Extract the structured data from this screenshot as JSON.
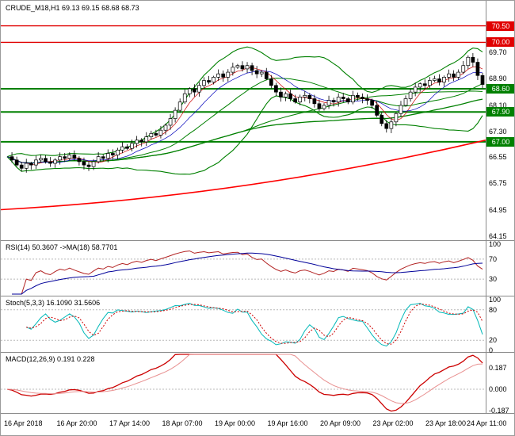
{
  "header": {
    "symbol_ohlc_label": "CRUDE_M18,H1 69.13 69.15 68.68 68.73"
  },
  "main_chart": {
    "y_ticks": [
      "69.70",
      "68.90",
      "68.10",
      "67.30",
      "66.55",
      "65.75",
      "64.95",
      "64.15"
    ],
    "levels": [
      {
        "label": "70.50",
        "value": 70.5,
        "color": "#e00000",
        "role": "resistance"
      },
      {
        "label": "70.00",
        "value": 70.0,
        "color": "#e00000",
        "role": "resistance"
      },
      {
        "label": "68.60",
        "value": 68.6,
        "color": "#008000",
        "role": "support"
      },
      {
        "label": "67.90",
        "value": 67.9,
        "color": "#008000",
        "role": "support"
      },
      {
        "label": "67.00",
        "value": 67.0,
        "color": "#008000",
        "role": "support"
      }
    ]
  },
  "indicators": {
    "rsi": {
      "label": "RSI(14) 50.3607  ->MA(18) 58.7701",
      "y_ticks": [
        100,
        70,
        30
      ],
      "levels": [
        70,
        30
      ],
      "range": [
        0,
        100
      ]
    },
    "stoch": {
      "label": "Stoch(5,3,3) 16.1090 31.5606",
      "y_ticks": [
        100,
        80,
        20,
        0
      ],
      "levels": [
        80,
        20
      ],
      "range": [
        0,
        100
      ]
    },
    "macd": {
      "label": "MACD(12,26,9) 0.191 0.228",
      "y_ticks": [
        "0.187",
        "0.000",
        "-0.187"
      ],
      "levels": [
        0
      ]
    }
  },
  "time_axis": {
    "labels": [
      "16 Apr 2018",
      "16 Apr 20:00",
      "17 Apr 14:00",
      "18 Apr 07:00",
      "19 Apr 00:00",
      "19 Apr 16:00",
      "20 Apr 09:00",
      "23 Apr 02:00",
      "23 Apr 18:00",
      "24 Apr 11:00"
    ]
  },
  "chart_data": {
    "type": "candlestick",
    "symbol": "CRUDE_M18",
    "timeframe": "H1",
    "title": "CRUDE_M18,H1",
    "current_bar": {
      "open": 69.13,
      "high": 69.15,
      "low": 68.68,
      "close": 68.73
    },
    "ylim": [
      64.03,
      71.25
    ],
    "x_labels": [
      "16 Apr 2018",
      "16 Apr 20:00",
      "17 Apr 14:00",
      "18 Apr 07:00",
      "19 Apr 00:00",
      "19 Apr 16:00",
      "20 Apr 09:00",
      "23 Apr 02:00",
      "23 Apr 18:00",
      "24 Apr 11:00"
    ],
    "closes": [
      66.55,
      66.45,
      66.3,
      66.2,
      66.35,
      66.3,
      66.45,
      66.5,
      66.4,
      66.35,
      66.45,
      66.55,
      66.5,
      66.6,
      66.5,
      66.4,
      66.3,
      66.25,
      66.4,
      66.55,
      66.5,
      66.65,
      66.6,
      66.75,
      66.85,
      66.8,
      66.95,
      67.05,
      67.0,
      67.15,
      67.25,
      67.2,
      67.35,
      67.5,
      67.7,
      67.95,
      68.2,
      68.45,
      68.6,
      68.5,
      68.7,
      68.85,
      68.8,
      68.95,
      69.05,
      68.95,
      69.1,
      69.25,
      69.3,
      69.2,
      69.3,
      69.15,
      69.05,
      69.1,
      68.9,
      68.7,
      68.5,
      68.35,
      68.45,
      68.3,
      68.2,
      68.35,
      68.4,
      68.3,
      68.15,
      68.0,
      68.1,
      68.25,
      68.2,
      68.35,
      68.3,
      68.2,
      68.4,
      68.35,
      68.3,
      68.25,
      68.1,
      67.8,
      67.55,
      67.4,
      67.6,
      67.85,
      68.1,
      68.3,
      68.5,
      68.65,
      68.75,
      68.7,
      68.85,
      68.9,
      68.8,
      68.95,
      69.05,
      68.95,
      69.1,
      69.3,
      69.55,
      69.4,
      69.0,
      68.73
    ],
    "resistance_levels": [
      70.5,
      70.0
    ],
    "support_levels": [
      68.6,
      67.9,
      67.0
    ],
    "trend_line": {
      "color": "#ff0000",
      "values_start_mid_end": [
        64.95,
        65.35,
        67.05
      ]
    },
    "overlays": [
      {
        "name": "bollinger",
        "window": 20,
        "mult": 2,
        "color": "#008000"
      },
      {
        "name": "sma",
        "window": 5,
        "color": "#cc0000"
      },
      {
        "name": "sma",
        "window": 10,
        "color": "#0000bb"
      },
      {
        "name": "sma",
        "window": 20,
        "color": "#008000"
      },
      {
        "name": "sma",
        "window": 50,
        "color": "#008000"
      },
      {
        "name": "sma",
        "window": 80,
        "color": "#008000"
      }
    ],
    "subcharts": [
      {
        "name": "RSI",
        "params": [
          14
        ],
        "value": 50.3607,
        "ma_period": 18,
        "ma_value": 58.7701,
        "range": [
          0,
          100
        ],
        "levels": [
          70,
          30
        ],
        "colors": {
          "main": "#b22222",
          "ma": "#000099"
        }
      },
      {
        "name": "Stochastic",
        "params": [
          5,
          3,
          3
        ],
        "k": 16.109,
        "d": 31.5606,
        "range": [
          0,
          100
        ],
        "levels": [
          80,
          20
        ],
        "colors": {
          "k": "#00b8b8",
          "d": "#cc0000"
        }
      },
      {
        "name": "MACD",
        "params": [
          12,
          26,
          9
        ],
        "macd": 0.191,
        "signal": 0.228,
        "y_ticks": [
          0.187,
          0.0,
          -0.187
        ],
        "colors": {
          "macd": "#cc0000",
          "signal": "#e89090"
        }
      }
    ]
  }
}
